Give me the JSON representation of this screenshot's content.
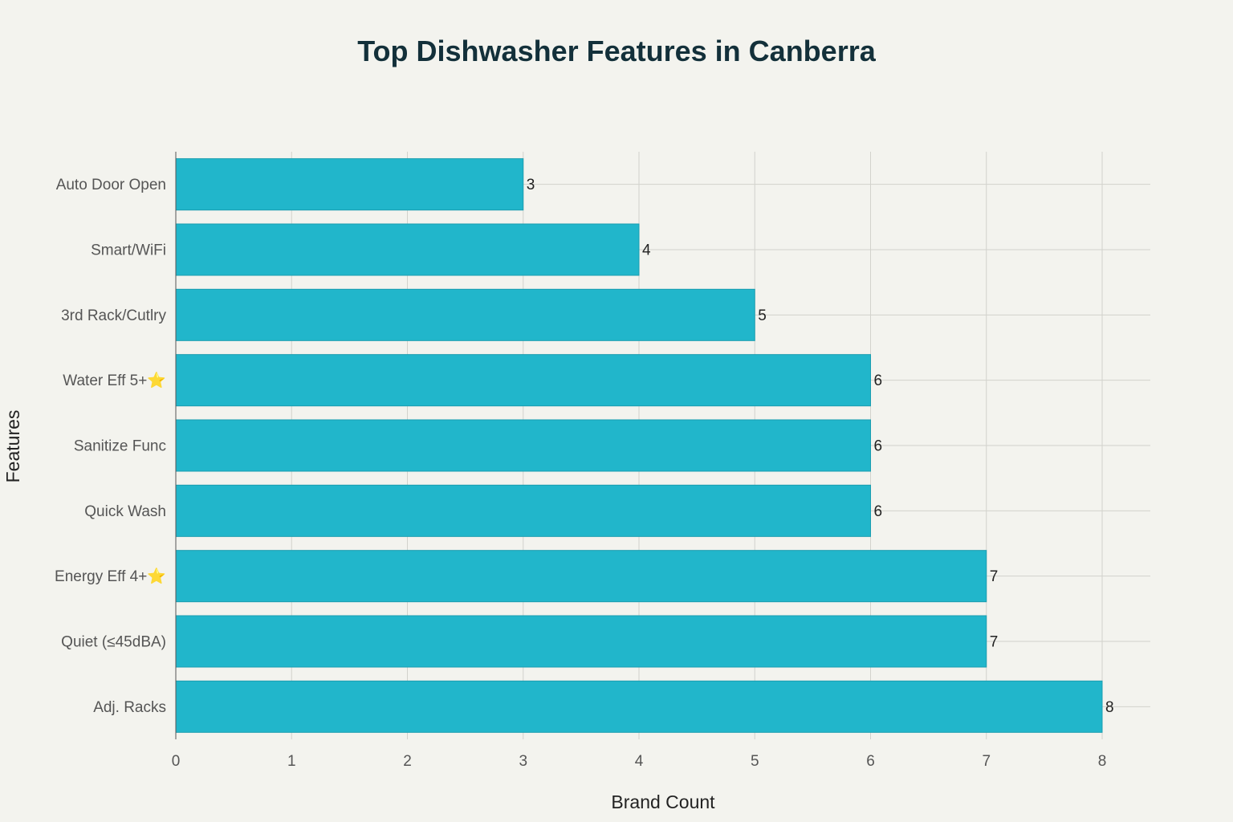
{
  "chart_data": {
    "type": "bar",
    "orientation": "horizontal",
    "title": "Top Dishwasher Features in Canberra",
    "xlabel": "Brand Count",
    "ylabel": "Features",
    "categories": [
      "Auto Door Open",
      "Smart/WiFi",
      "3rd Rack/Cutlry",
      "Water Eff 5+⭐",
      "Sanitize Func",
      "Quick Wash",
      "Energy Eff 4+⭐",
      "Quiet (≤45dBA)",
      "Adj. Racks"
    ],
    "values": [
      3,
      4,
      5,
      6,
      6,
      6,
      7,
      7,
      8
    ],
    "xlim": [
      0,
      8.42
    ],
    "xticks": [
      0,
      1,
      2,
      3,
      4,
      5,
      6,
      7,
      8
    ],
    "grid": true,
    "bar_color": "#21b6cb",
    "show_data_labels": true
  }
}
